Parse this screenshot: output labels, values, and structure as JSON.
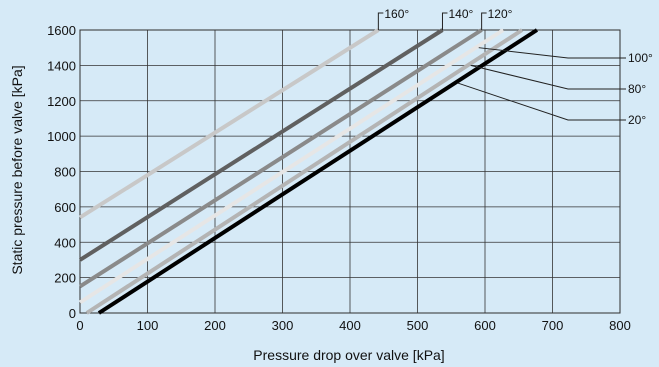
{
  "chart_data": {
    "type": "line",
    "title": "",
    "xlabel": "Pressure drop over valve [kPa]",
    "ylabel": "Static pressure before valve [kPa]",
    "xlim": [
      0,
      800
    ],
    "ylim": [
      0,
      1600
    ],
    "x_ticks": [
      0,
      100,
      200,
      300,
      400,
      500,
      600,
      700,
      800
    ],
    "y_ticks": [
      0,
      200,
      400,
      600,
      800,
      1000,
      1200,
      1400,
      1600
    ],
    "grid": true,
    "series": [
      {
        "name": "160°",
        "color": "#c8c8c8",
        "points": [
          [
            0,
            540
          ],
          [
            442,
            1600
          ]
        ]
      },
      {
        "name": "140°",
        "color": "#606060",
        "points": [
          [
            0,
            300
          ],
          [
            537,
            1600
          ]
        ]
      },
      {
        "name": "120°",
        "color": "#8a8a8a",
        "points": [
          [
            0,
            150
          ],
          [
            595,
            1600
          ]
        ]
      },
      {
        "name": "100°",
        "color": "#e6e6e6",
        "points": [
          [
            0,
            60
          ],
          [
            627,
            1600
          ]
        ]
      },
      {
        "name": "80°",
        "color": "#b4b4b4",
        "points": [
          [
            10,
            0
          ],
          [
            655,
            1600
          ]
        ]
      },
      {
        "name": "20°",
        "color": "#000000",
        "points": [
          [
            28,
            0
          ],
          [
            677,
            1600
          ]
        ]
      }
    ],
    "top_labels": [
      "160°",
      "140°",
      "120°"
    ],
    "right_labels": [
      "100°",
      "80°",
      "20°"
    ]
  }
}
